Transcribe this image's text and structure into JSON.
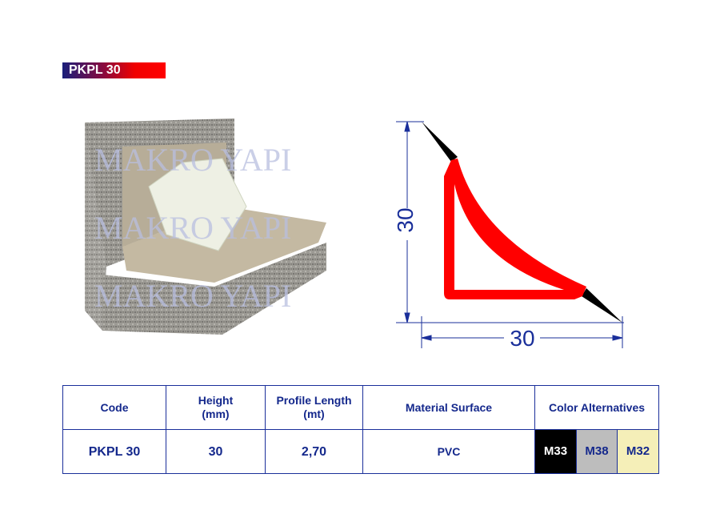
{
  "title": "PKPL 30",
  "watermark": "MAKRO YAPI",
  "diagram": {
    "height_label": "30",
    "width_label": "30",
    "profile_color": "#ff0000"
  },
  "table": {
    "headers": {
      "code": "Code",
      "height": "Height",
      "height_unit": "(mm)",
      "length": "Profile Length",
      "length_unit": "(mt)",
      "surface": "Material Surface",
      "colors": "Color Alternatives"
    },
    "row": {
      "code": "PKPL 30",
      "height": "30",
      "length": "2,70",
      "surface": "PVC"
    },
    "color_alternatives": [
      {
        "code": "M33",
        "color": "#000000"
      },
      {
        "code": "M38",
        "color": "#bdbdbd"
      },
      {
        "code": "M32",
        "color": "#f5efb8"
      }
    ]
  }
}
